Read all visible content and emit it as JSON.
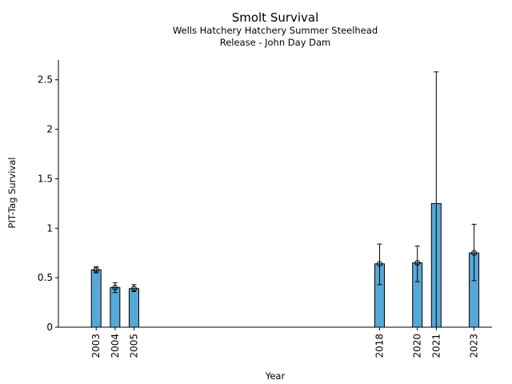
{
  "chart_data": {
    "type": "bar",
    "title": "Smolt Survival",
    "subtitle_lines": [
      "Wells Hatchery Hatchery Summer Steelhead",
      "Release - John Day Dam"
    ],
    "xlabel": "Year",
    "ylabel": "PIT-Tag Survival",
    "ylim": [
      0,
      2.7
    ],
    "yticks": [
      0,
      0.5,
      1,
      1.5,
      2,
      2.5
    ],
    "ytick_labels": [
      "0",
      "0.5",
      "1",
      "1.5",
      "2",
      "2.5"
    ],
    "x": [
      2003,
      2004,
      2005,
      2018,
      2020,
      2021,
      2023
    ],
    "categories": [
      "2003",
      "2004",
      "2005",
      "2018",
      "2020",
      "2021",
      "2023"
    ],
    "values": [
      0.58,
      0.4,
      0.39,
      0.64,
      0.65,
      1.25,
      0.75
    ],
    "error_low": [
      0.55,
      0.35,
      0.36,
      0.43,
      0.46,
      0.0,
      0.47
    ],
    "error_high": [
      0.61,
      0.45,
      0.43,
      0.84,
      0.82,
      2.58,
      1.04
    ],
    "point_markers": [
      true,
      true,
      true,
      true,
      true,
      false,
      true
    ],
    "bar_color": "#56a8d6",
    "grid": false
  }
}
